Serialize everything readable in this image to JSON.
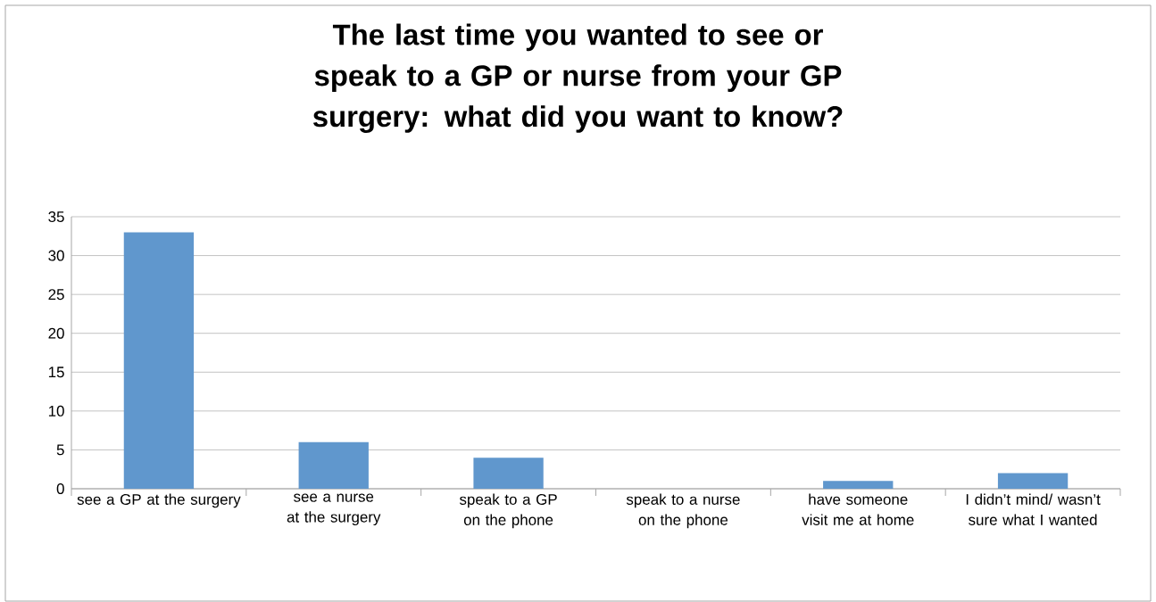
{
  "chart_data": {
    "type": "bar",
    "title": "The last time you wanted to see or speak to a GP or nurse from your GP surgery: what did you want to know?",
    "categories": [
      "see a GP at the surgery",
      "see a nurse at the surgery",
      "speak to a GP on the phone",
      "speak to a nurse on the phone",
      "have someone visit me at home",
      "I didn’t mind/ wasn’t sure what I wanted"
    ],
    "values": [
      33,
      6,
      4,
      0,
      1,
      2
    ],
    "color": "#6097cd",
    "ylim": [
      0,
      35
    ],
    "yticks": [
      0,
      5,
      10,
      15,
      20,
      25,
      30,
      35
    ],
    "grid": "y"
  }
}
